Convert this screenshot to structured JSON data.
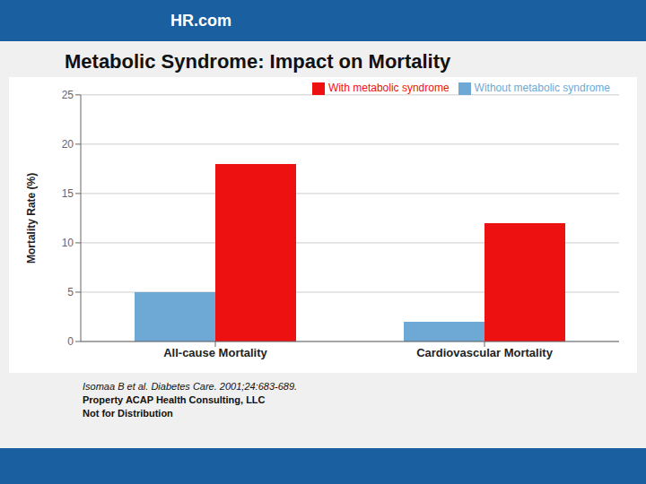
{
  "chart_data": {
    "type": "bar",
    "title": "Metabolic Syndrome: Impact on Mortality",
    "ylabel": "Mortality Rate (%)",
    "categories": [
      "All-cause Mortality",
      "Cardiovascular Mortality"
    ],
    "series": [
      {
        "name": "Without metabolic syndrome",
        "color": "#6EA8D5",
        "values": [
          5,
          2
        ]
      },
      {
        "name": "With metabolic syndrome",
        "color": "#EE1111",
        "values": [
          18,
          12
        ]
      }
    ],
    "ylim": [
      0,
      25
    ],
    "yticks": [
      0,
      5,
      10,
      15,
      20,
      25
    ],
    "grid": true,
    "legend": "upper right",
    "annotations": [
      "Isomaa B et al. Diabetes Care. 2001;24:683-689.",
      "Property ACAP Health Consulting, LLC",
      "Not for Distribution",
      "HR.com"
    ]
  }
}
